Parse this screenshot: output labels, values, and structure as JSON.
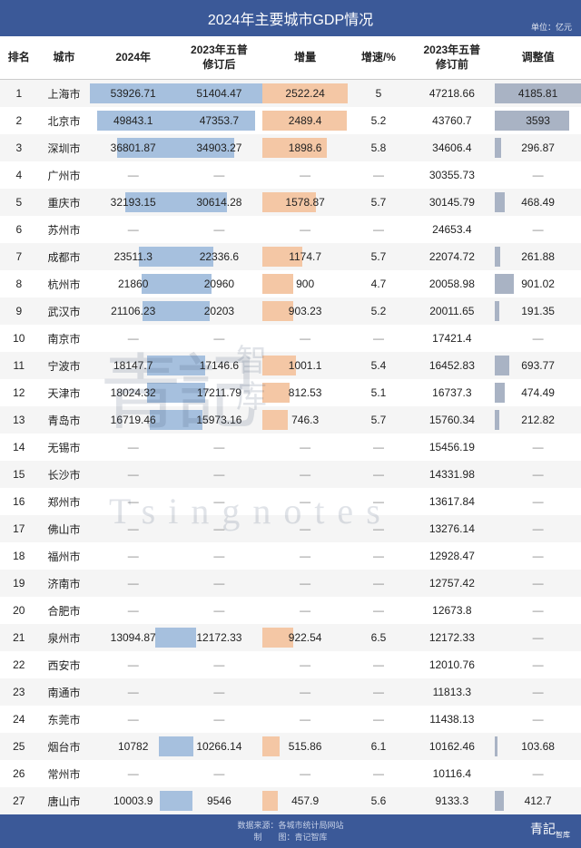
{
  "title": "2024年主要城市GDP情况",
  "unit": "单位：亿元",
  "headers": {
    "rank": "排名",
    "city": "城市",
    "y2024": "2024年",
    "y2023after": "2023年五普\n修订后",
    "increment": "增量",
    "rate": "增速/%",
    "y2023before": "2023年五普\n修订前",
    "adjust": "调整值"
  },
  "colors": {
    "header_bg": "#3b5998",
    "bar_blue": "#a6c0de",
    "bar_orange": "#f4c7a5",
    "bar_gray": "#a9b3c4",
    "row_odd": "#f5f5f5",
    "row_even": "#ffffff"
  },
  "maxes": {
    "y2024": 53926.71,
    "y2023after": 51404.47,
    "increment": 2522.24,
    "adjust": 4185.81
  },
  "rows": [
    {
      "rank": 1,
      "city": "上海市",
      "y2024": "53926.71",
      "y2023after": "51404.47",
      "inc": "2522.24",
      "rate": "5",
      "y2023before": "47218.66",
      "adj": "4185.81"
    },
    {
      "rank": 2,
      "city": "北京市",
      "y2024": "49843.1",
      "y2023after": "47353.7",
      "inc": "2489.4",
      "rate": "5.2",
      "y2023before": "43760.7",
      "adj": "3593"
    },
    {
      "rank": 3,
      "city": "深圳市",
      "y2024": "36801.87",
      "y2023after": "34903.27",
      "inc": "1898.6",
      "rate": "5.8",
      "y2023before": "34606.4",
      "adj": "296.87"
    },
    {
      "rank": 4,
      "city": "广州市",
      "y2024": "—",
      "y2023after": "—",
      "inc": "—",
      "rate": "—",
      "y2023before": "30355.73",
      "adj": "—"
    },
    {
      "rank": 5,
      "city": "重庆市",
      "y2024": "32193.15",
      "y2023after": "30614.28",
      "inc": "1578.87",
      "rate": "5.7",
      "y2023before": "30145.79",
      "adj": "468.49"
    },
    {
      "rank": 6,
      "city": "苏州市",
      "y2024": "—",
      "y2023after": "—",
      "inc": "—",
      "rate": "—",
      "y2023before": "24653.4",
      "adj": "—"
    },
    {
      "rank": 7,
      "city": "成都市",
      "y2024": "23511.3",
      "y2023after": "22336.6",
      "inc": "1174.7",
      "rate": "5.7",
      "y2023before": "22074.72",
      "adj": "261.88"
    },
    {
      "rank": 8,
      "city": "杭州市",
      "y2024": "21860",
      "y2023after": "20960",
      "inc": "900",
      "rate": "4.7",
      "y2023before": "20058.98",
      "adj": "901.02"
    },
    {
      "rank": 9,
      "city": "武汉市",
      "y2024": "21106.23",
      "y2023after": "20203",
      "inc": "903.23",
      "rate": "5.2",
      "y2023before": "20011.65",
      "adj": "191.35"
    },
    {
      "rank": 10,
      "city": "南京市",
      "y2024": "—",
      "y2023after": "—",
      "inc": "—",
      "rate": "—",
      "y2023before": "17421.4",
      "adj": "—"
    },
    {
      "rank": 11,
      "city": "宁波市",
      "y2024": "18147.7",
      "y2023after": "17146.6",
      "inc": "1001.1",
      "rate": "5.4",
      "y2023before": "16452.83",
      "adj": "693.77"
    },
    {
      "rank": 12,
      "city": "天津市",
      "y2024": "18024.32",
      "y2023after": "17211.79",
      "inc": "812.53",
      "rate": "5.1",
      "y2023before": "16737.3",
      "adj": "474.49"
    },
    {
      "rank": 13,
      "city": "青岛市",
      "y2024": "16719.46",
      "y2023after": "15973.16",
      "inc": "746.3",
      "rate": "5.7",
      "y2023before": "15760.34",
      "adj": "212.82"
    },
    {
      "rank": 14,
      "city": "无锡市",
      "y2024": "—",
      "y2023after": "—",
      "inc": "—",
      "rate": "—",
      "y2023before": "15456.19",
      "adj": "—"
    },
    {
      "rank": 15,
      "city": "长沙市",
      "y2024": "—",
      "y2023after": "—",
      "inc": "—",
      "rate": "—",
      "y2023before": "14331.98",
      "adj": "—"
    },
    {
      "rank": 16,
      "city": "郑州市",
      "y2024": "—",
      "y2023after": "—",
      "inc": "—",
      "rate": "—",
      "y2023before": "13617.84",
      "adj": "—"
    },
    {
      "rank": 17,
      "city": "佛山市",
      "y2024": "—",
      "y2023after": "—",
      "inc": "—",
      "rate": "—",
      "y2023before": "13276.14",
      "adj": "—"
    },
    {
      "rank": 18,
      "city": "福州市",
      "y2024": "—",
      "y2023after": "—",
      "inc": "—",
      "rate": "—",
      "y2023before": "12928.47",
      "adj": "—"
    },
    {
      "rank": 19,
      "city": "济南市",
      "y2024": "—",
      "y2023after": "—",
      "inc": "—",
      "rate": "—",
      "y2023before": "12757.42",
      "adj": "—"
    },
    {
      "rank": 20,
      "city": "合肥市",
      "y2024": "—",
      "y2023after": "—",
      "inc": "—",
      "rate": "—",
      "y2023before": "12673.8",
      "adj": "—"
    },
    {
      "rank": 21,
      "city": "泉州市",
      "y2024": "13094.87",
      "y2023after": "12172.33",
      "inc": "922.54",
      "rate": "6.5",
      "y2023before": "12172.33",
      "adj": "—"
    },
    {
      "rank": 22,
      "city": "西安市",
      "y2024": "—",
      "y2023after": "—",
      "inc": "—",
      "rate": "—",
      "y2023before": "12010.76",
      "adj": "—"
    },
    {
      "rank": 23,
      "city": "南通市",
      "y2024": "—",
      "y2023after": "—",
      "inc": "—",
      "rate": "—",
      "y2023before": "11813.3",
      "adj": "—"
    },
    {
      "rank": 24,
      "city": "东莞市",
      "y2024": "—",
      "y2023after": "—",
      "inc": "—",
      "rate": "—",
      "y2023before": "11438.13",
      "adj": "—"
    },
    {
      "rank": 25,
      "city": "烟台市",
      "y2024": "10782",
      "y2023after": "10266.14",
      "inc": "515.86",
      "rate": "6.1",
      "y2023before": "10162.46",
      "adj": "103.68"
    },
    {
      "rank": 26,
      "city": "常州市",
      "y2024": "—",
      "y2023after": "—",
      "inc": "—",
      "rate": "—",
      "y2023before": "10116.4",
      "adj": "—"
    },
    {
      "rank": 27,
      "city": "唐山市",
      "y2024": "10003.9",
      "y2023after": "9546",
      "inc": "457.9",
      "rate": "5.6",
      "y2023before": "9133.3",
      "adj": "412.7"
    }
  ],
  "footer": {
    "source": "数据来源：各城市统计局网站",
    "author": "制　　图：青记智库",
    "brand": "青記",
    "brand_sub": "智库"
  },
  "watermark": {
    "cn": "青記",
    "zhi": "智",
    "ku": "库",
    "en": "Tsingnotes"
  }
}
